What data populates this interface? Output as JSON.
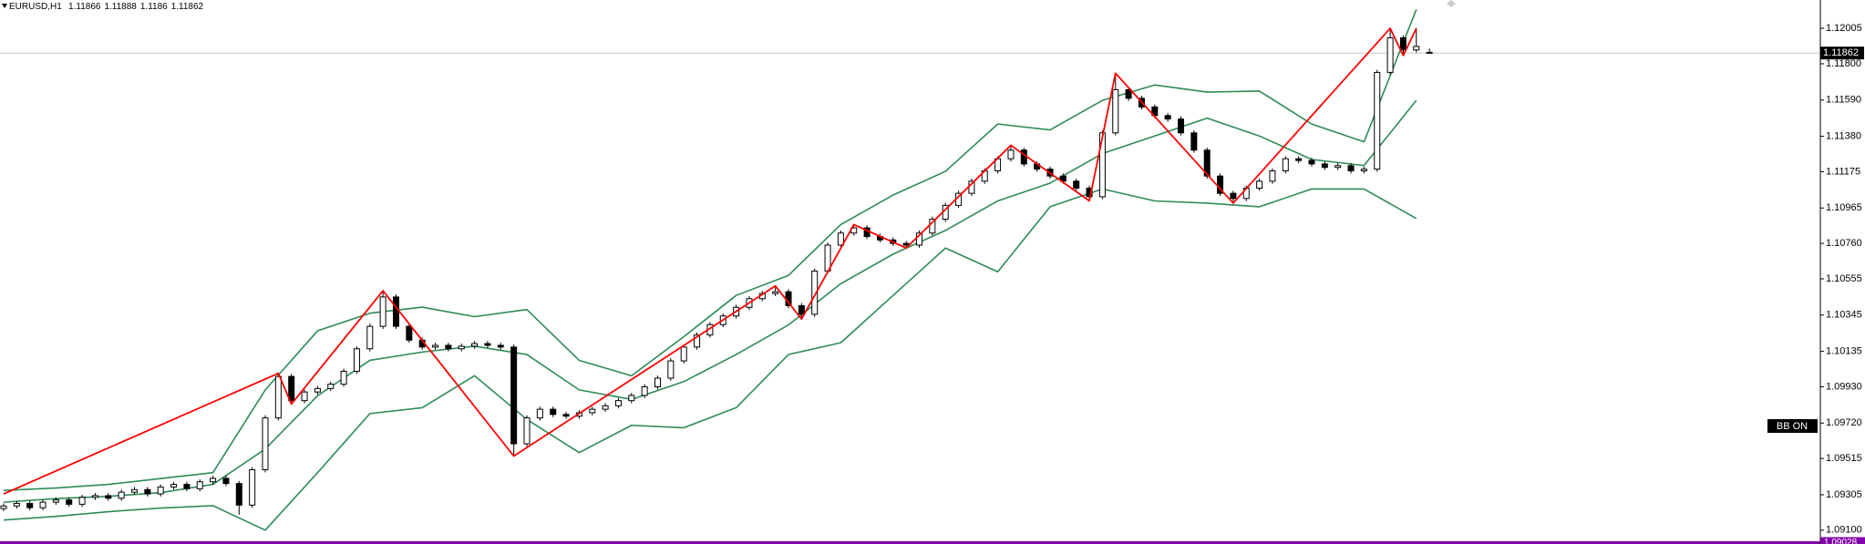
{
  "chart_data": {
    "type": "candlestick",
    "symbol": "EURUSD,H1",
    "up_color": "#ffffff",
    "down_color": "#000000",
    "ylim": [
      1.0902,
      1.12169
    ],
    "yticks": [
      1.12005,
      {
        "value": 1.118,
        "label": "1.11800"
      },
      {
        "value": 1.1159,
        "label": "1.11590"
      },
      {
        "value": 1.1138,
        "label": "1.11380"
      },
      1.11175,
      1.10965,
      {
        "value": 1.1076,
        "label": "1.10760"
      },
      1.10555,
      1.10345,
      1.10135,
      {
        "value": 1.0993,
        "label": "1.09930"
      },
      {
        "value": 1.0972,
        "label": "1.09720"
      },
      1.09515,
      1.09305,
      {
        "value": 1.091,
        "label": "1.09100"
      }
    ],
    "open": [
      1.09225,
      1.0924,
      1.09255,
      1.0923,
      1.09262,
      1.09275,
      1.0925,
      1.0929,
      1.093,
      1.09285,
      1.0932,
      1.09335,
      1.0931,
      1.0935,
      1.09365,
      1.0934,
      1.0938,
      1.094,
      1.0937,
      1.09245,
      1.0945,
      1.0975,
      1.0999,
      1.0985,
      1.099,
      1.0992,
      1.09945,
      1.1002,
      1.1015,
      1.1028,
      1.1045,
      1.1028,
      1.102,
      1.1016,
      1.1017,
      1.1015,
      1.10165,
      1.1018,
      1.1017,
      1.1016,
      1.096,
      1.0975,
      1.098,
      1.0977,
      1.0976,
      1.0978,
      1.098,
      1.0982,
      1.0985,
      1.0988,
      1.0993,
      1.0998,
      1.1008,
      1.1016,
      1.1023,
      1.1029,
      1.1034,
      1.1039,
      1.1044,
      1.1047,
      1.1048,
      1.104,
      1.1035,
      1.106,
      1.1075,
      1.1082,
      1.1085,
      1.108,
      1.1078,
      1.1076,
      1.1075,
      1.1082,
      1.109,
      1.1098,
      1.1105,
      1.1112,
      1.1118,
      1.1125,
      1.113,
      1.1122,
      1.1119,
      1.1115,
      1.1112,
      1.1108,
      1.1103,
      1.114,
      1.1165,
      1.116,
      1.1155,
      1.115,
      1.1148,
      1.114,
      1.113,
      1.1115,
      1.1105,
      1.1102,
      1.1108,
      1.1112,
      1.1118,
      1.1125,
      1.1124,
      1.1122,
      1.112,
      1.1121,
      1.1118,
      1.1119,
      1.1175,
      1.1195,
      1.1188,
      1.11866
    ],
    "high": [
      1.09255,
      1.0927,
      1.0927,
      1.09277,
      1.0929,
      1.0929,
      1.09305,
      1.09315,
      1.09315,
      1.09335,
      1.0935,
      1.0935,
      1.09365,
      1.0938,
      1.0938,
      1.09395,
      1.09415,
      1.09415,
      1.09385,
      1.09465,
      1.09765,
      1.10008,
      1.10005,
      1.09915,
      1.09935,
      1.0996,
      1.10035,
      1.10165,
      1.10295,
      1.10486,
      1.10465,
      1.10295,
      1.10215,
      1.10185,
      1.10185,
      1.1018,
      1.10195,
      1.10195,
      1.10185,
      1.10175,
      1.09765,
      1.09815,
      1.09815,
      1.09785,
      1.09795,
      1.09815,
      1.09835,
      1.09865,
      1.09895,
      1.09945,
      1.09995,
      1.10095,
      1.10175,
      1.10245,
      1.10305,
      1.10355,
      1.10405,
      1.10455,
      1.10485,
      1.10514,
      1.10495,
      1.10415,
      1.10615,
      1.10765,
      1.10835,
      1.10869,
      1.10865,
      1.10815,
      1.10795,
      1.10775,
      1.10835,
      1.10915,
      1.10995,
      1.11065,
      1.11135,
      1.11195,
      1.11265,
      1.11328,
      1.11315,
      1.11235,
      1.11205,
      1.11165,
      1.11135,
      1.11095,
      1.11415,
      1.11745,
      1.11665,
      1.11615,
      1.11565,
      1.11515,
      1.11495,
      1.11415,
      1.11315,
      1.11165,
      1.11065,
      1.11095,
      1.11135,
      1.11195,
      1.11265,
      1.11265,
      1.11255,
      1.11235,
      1.11225,
      1.11225,
      1.11205,
      1.11765,
      1.12005,
      1.11965,
      1.12005,
      1.11888
    ],
    "low": [
      1.0921,
      1.09225,
      1.09215,
      1.09215,
      1.09247,
      1.09235,
      1.09235,
      1.09275,
      1.0927,
      1.0927,
      1.09305,
      1.09295,
      1.09295,
      1.09335,
      1.09325,
      1.09325,
      1.09365,
      1.09355,
      1.0919,
      1.0923,
      1.09435,
      1.09735,
      1.0983,
      1.09835,
      1.09885,
      1.09905,
      1.0993,
      1.10005,
      1.10135,
      1.10265,
      1.10265,
      1.10185,
      1.10145,
      1.10145,
      1.10135,
      1.10135,
      1.1015,
      1.10155,
      1.10145,
      1.09529,
      1.09585,
      1.09735,
      1.09755,
      1.09745,
      1.09745,
      1.09765,
      1.09785,
      1.09805,
      1.09835,
      1.09865,
      1.09915,
      1.09965,
      1.10065,
      1.10145,
      1.10215,
      1.10275,
      1.10325,
      1.10375,
      1.10425,
      1.10455,
      1.10385,
      1.10322,
      1.10335,
      1.10585,
      1.10735,
      1.10805,
      1.10785,
      1.10765,
      1.10745,
      1.10733,
      1.10735,
      1.10805,
      1.10885,
      1.10965,
      1.11035,
      1.11105,
      1.11165,
      1.11235,
      1.11205,
      1.11175,
      1.11135,
      1.11105,
      1.11065,
      1.11006,
      1.11015,
      1.11385,
      1.11585,
      1.11535,
      1.11485,
      1.11465,
      1.11385,
      1.11285,
      1.11135,
      1.11035,
      1.10993,
      1.11005,
      1.11065,
      1.11105,
      1.11165,
      1.11225,
      1.11205,
      1.11185,
      1.11185,
      1.11165,
      1.11165,
      1.11175,
      1.11735,
      1.11848,
      1.11865,
      1.1186
    ],
    "close": [
      1.0924,
      1.09255,
      1.0923,
      1.09262,
      1.09275,
      1.0925,
      1.0929,
      1.093,
      1.09285,
      1.0932,
      1.09335,
      1.0931,
      1.0935,
      1.09365,
      1.0934,
      1.0938,
      1.094,
      1.0937,
      1.09245,
      1.0945,
      1.0975,
      1.0999,
      1.0985,
      1.099,
      1.0992,
      1.09945,
      1.1002,
      1.1015,
      1.1028,
      1.1045,
      1.1028,
      1.102,
      1.1016,
      1.1017,
      1.1015,
      1.10165,
      1.1018,
      1.1017,
      1.1016,
      1.096,
      1.0975,
      1.098,
      1.0977,
      1.0976,
      1.0978,
      1.098,
      1.0982,
      1.0985,
      1.0988,
      1.0993,
      1.0998,
      1.1008,
      1.1016,
      1.1023,
      1.1029,
      1.1034,
      1.1039,
      1.1044,
      1.1047,
      1.1048,
      1.104,
      1.1035,
      1.106,
      1.1075,
      1.1082,
      1.1085,
      1.108,
      1.1078,
      1.1076,
      1.1075,
      1.1082,
      1.109,
      1.1098,
      1.1105,
      1.1112,
      1.1118,
      1.1125,
      1.113,
      1.1122,
      1.1119,
      1.1115,
      1.1112,
      1.1108,
      1.1103,
      1.114,
      1.1165,
      1.116,
      1.1155,
      1.115,
      1.1148,
      1.114,
      1.113,
      1.1115,
      1.1105,
      1.1102,
      1.1108,
      1.1112,
      1.1118,
      1.1125,
      1.1124,
      1.1122,
      1.112,
      1.1121,
      1.1118,
      1.1119,
      1.1175,
      1.1195,
      1.1188,
      1.119,
      1.11862
    ],
    "bands": {
      "color": "#2e8b57",
      "x": [
        0,
        4,
        8,
        12,
        16,
        20,
        24,
        28,
        32,
        36,
        40,
        44,
        48,
        52,
        56,
        60,
        64,
        68,
        72,
        76,
        80,
        84,
        88,
        92,
        96,
        100,
        104,
        108
      ],
      "upper": [
        1.0933,
        1.09344,
        1.09365,
        1.09399,
        1.09433,
        1.09912,
        1.10254,
        1.10356,
        1.10391,
        1.10336,
        1.10377,
        1.10083,
        1.09994,
        1.1022,
        1.10459,
        1.10575,
        1.10869,
        1.1104,
        1.11177,
        1.11451,
        1.11417,
        1.11588,
        1.11677,
        1.11636,
        1.11642,
        1.11451,
        1.11348,
        1.12114
      ],
      "middle": [
        1.09262,
        1.09283,
        1.09296,
        1.09317,
        1.09365,
        1.0957,
        1.09878,
        1.10083,
        1.10131,
        1.10165,
        1.10117,
        1.09912,
        1.09857,
        1.0996,
        1.10117,
        1.10288,
        1.10527,
        1.10698,
        1.10835,
        1.11006,
        1.11109,
        1.1128,
        1.11382,
        1.11485,
        1.11382,
        1.11246,
        1.11211,
        1.11588
      ],
      "lower": [
        1.09159,
        1.0918,
        1.09207,
        1.09228,
        1.09242,
        1.091,
        1.09433,
        1.09775,
        1.09809,
        1.09994,
        1.09741,
        1.09549,
        1.09707,
        1.09693,
        1.09809,
        1.10117,
        1.10185,
        1.10459,
        1.10733,
        1.10596,
        1.10972,
        1.11075,
        1.11006,
        1.10993,
        1.10972,
        1.11075,
        1.11075,
        1.10904
      ]
    },
    "zigzag": {
      "color": "#ff0000",
      "x": [
        0,
        21,
        22,
        29,
        39,
        59,
        61,
        65,
        69,
        77,
        83,
        85,
        94,
        106,
        107,
        108
      ],
      "values": [
        1.0931,
        1.10008,
        1.0983,
        1.10486,
        1.09529,
        1.10514,
        1.10322,
        1.10869,
        1.10733,
        1.11328,
        1.11006,
        1.11745,
        1.10993,
        1.12005,
        1.11848,
        1.12005
      ]
    },
    "alert_line": 1.09028,
    "alert_color": "#8000a8"
  },
  "button": "BB ON"
}
